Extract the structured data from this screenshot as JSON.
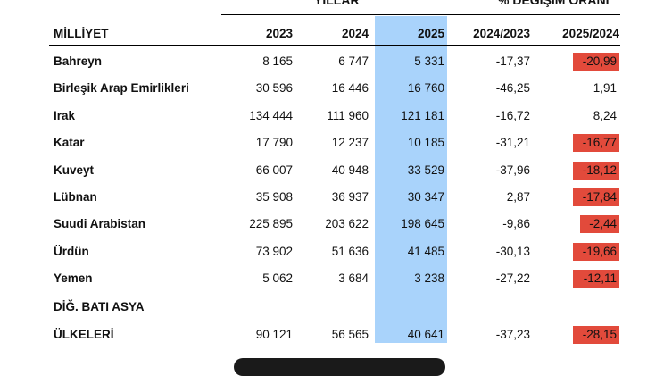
{
  "header": {
    "group_years": "YILLAR",
    "group_change": "% DEĞİŞİM ORANI",
    "col_nationality": "MİLLİYET",
    "col_2023": "2023",
    "col_2024": "2024",
    "col_2025": "2025",
    "col_change_2024": "2024/2023",
    "col_change_2025": "2025/2024"
  },
  "highlight_color": "#a9d3fb",
  "negative_color": "#e24a3b",
  "rows": [
    {
      "name": "Bahreyn",
      "v2023": "8 165",
      "v2024": "6 747",
      "v2025": "5 331",
      "c2024": "-17,37",
      "c2025": "-20,99",
      "c2025_highlighted": true
    },
    {
      "name": "Birleşik Arap Emirlikleri",
      "v2023": "30 596",
      "v2024": "16 446",
      "v2025": "16 760",
      "c2024": "-46,25",
      "c2025": "1,91",
      "c2025_highlighted": false
    },
    {
      "name": "Irak",
      "v2023": "134 444",
      "v2024": "111 960",
      "v2025": "121 181",
      "c2024": "-16,72",
      "c2025": "8,24",
      "c2025_highlighted": false
    },
    {
      "name": "Katar",
      "v2023": "17 790",
      "v2024": "12 237",
      "v2025": "10 185",
      "c2024": "-31,21",
      "c2025": "-16,77",
      "c2025_highlighted": true
    },
    {
      "name": "Kuveyt",
      "v2023": "66 007",
      "v2024": "40 948",
      "v2025": "33 529",
      "c2024": "-37,96",
      "c2025": "-18,12",
      "c2025_highlighted": true
    },
    {
      "name": "Lübnan",
      "v2023": "35 908",
      "v2024": "36 937",
      "v2025": "30 347",
      "c2024": "2,87",
      "c2025": "-17,84",
      "c2025_highlighted": true
    },
    {
      "name": "Suudi Arabistan",
      "v2023": "225 895",
      "v2024": "203 622",
      "v2025": "198 645",
      "c2024": "-9,86",
      "c2025": "-2,44",
      "c2025_highlighted": true
    },
    {
      "name": "Ürdün",
      "v2023": "73 902",
      "v2024": "51 636",
      "v2025": "41 485",
      "c2024": "-30,13",
      "c2025": "-19,66",
      "c2025_highlighted": true
    },
    {
      "name": "Yemen",
      "v2023": "5 062",
      "v2024": "3 684",
      "v2025": "3 238",
      "c2024": "-27,22",
      "c2025": "-12,11",
      "c2025_highlighted": true
    }
  ],
  "group_row": {
    "label_line1": "DİĞ.  BATI ASYA",
    "label_line2": "ÜLKELERİ",
    "v2023": "90 121",
    "v2024": "56 565",
    "v2025": "40 641",
    "c2024": "-37,23",
    "c2025": "-28,15",
    "c2025_highlighted": true
  }
}
